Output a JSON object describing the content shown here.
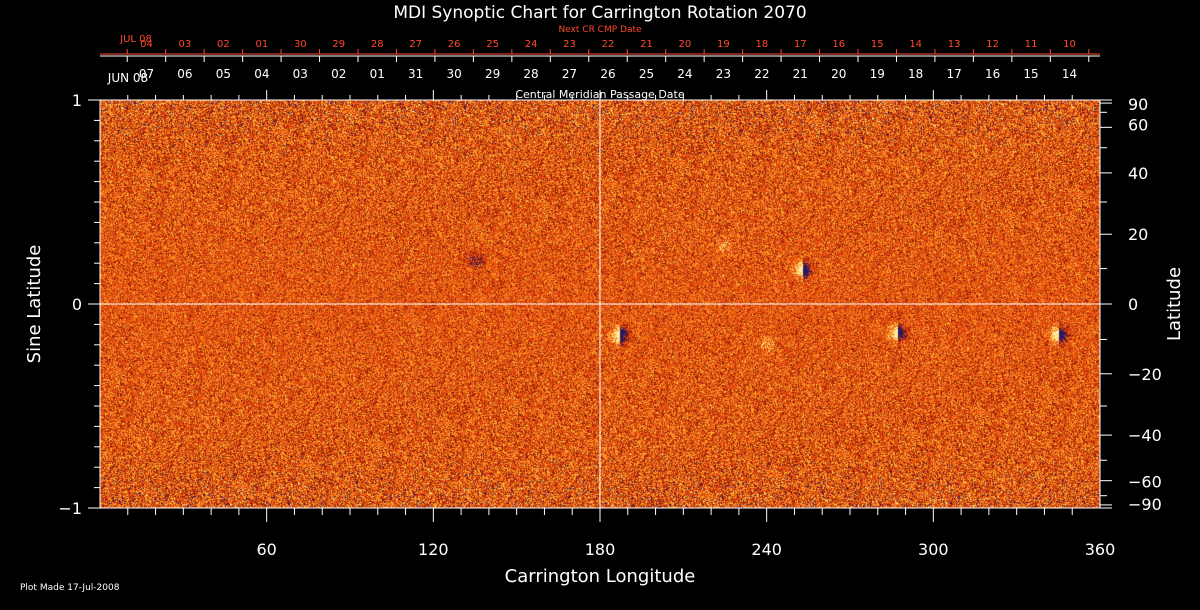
{
  "chart_data": {
    "type": "heatmap",
    "title": "MDI Synoptic Chart for Carrington Rotation 2070",
    "xlabel": "Carrington Longitude",
    "ylabel": "Sine Latitude",
    "ylabel_right": "Latitude",
    "xlim": [
      0,
      360
    ],
    "ylim": [
      -1,
      1
    ],
    "x_ticks": [
      60,
      120,
      180,
      240,
      300,
      360
    ],
    "y_ticks": [
      {
        "value": 1,
        "label": "1"
      },
      {
        "value": 0,
        "label": "0"
      },
      {
        "value": -1,
        "label": "−1"
      }
    ],
    "lat_ticks": [
      {
        "deg": 90,
        "label": "90"
      },
      {
        "deg": 60,
        "label": "60"
      },
      {
        "deg": 40,
        "label": "40"
      },
      {
        "deg": 20,
        "label": "20"
      },
      {
        "deg": 0,
        "label": "0"
      },
      {
        "deg": -20,
        "label": "−20"
      },
      {
        "deg": -40,
        "label": "−40"
      },
      {
        "deg": -60,
        "label": "−60"
      },
      {
        "deg": -90,
        "label": "−90"
      }
    ],
    "cmp_axis_label": "Central Meridian Passage Date",
    "cmp_start_label": "JUN 08",
    "cmp_dates": [
      "07",
      "06",
      "05",
      "04",
      "03",
      "02",
      "01",
      "31",
      "30",
      "29",
      "28",
      "27",
      "26",
      "25",
      "24",
      "23",
      "22",
      "21",
      "20",
      "19",
      "18",
      "17",
      "16",
      "15",
      "14"
    ],
    "next_cmp_label": "Next CR CMP Date",
    "next_cmp_start_label": "JUL 08",
    "next_cmp_dates": [
      "04",
      "03",
      "02",
      "01",
      "30",
      "29",
      "28",
      "27",
      "26",
      "25",
      "24",
      "23",
      "22",
      "21",
      "20",
      "19",
      "18",
      "17",
      "16",
      "15",
      "14",
      "13",
      "12",
      "11",
      "10"
    ],
    "features": [
      {
        "lon": 253,
        "sinlat": 0.17,
        "polarity": "mixed"
      },
      {
        "lon": 187,
        "sinlat": -0.15,
        "polarity": "mixed"
      },
      {
        "lon": 287,
        "sinlat": -0.14,
        "polarity": "mixed"
      },
      {
        "lon": 345,
        "sinlat": -0.15,
        "polarity": "mixed"
      },
      {
        "lon": 225,
        "sinlat": 0.28,
        "polarity": "positive"
      },
      {
        "lon": 240,
        "sinlat": -0.2,
        "polarity": "positive"
      },
      {
        "lon": 135,
        "sinlat": 0.21,
        "polarity": "negative"
      }
    ],
    "grid": false,
    "colors": {
      "background": "#000000",
      "map_base": "#e64a12",
      "positive": "#fff0a0",
      "negative": "#22186a",
      "axis": "#ffffff",
      "next_cmp": "#ff4a2a"
    }
  },
  "footer": {
    "plot_made": "Plot Made 17-Jul-2008"
  }
}
